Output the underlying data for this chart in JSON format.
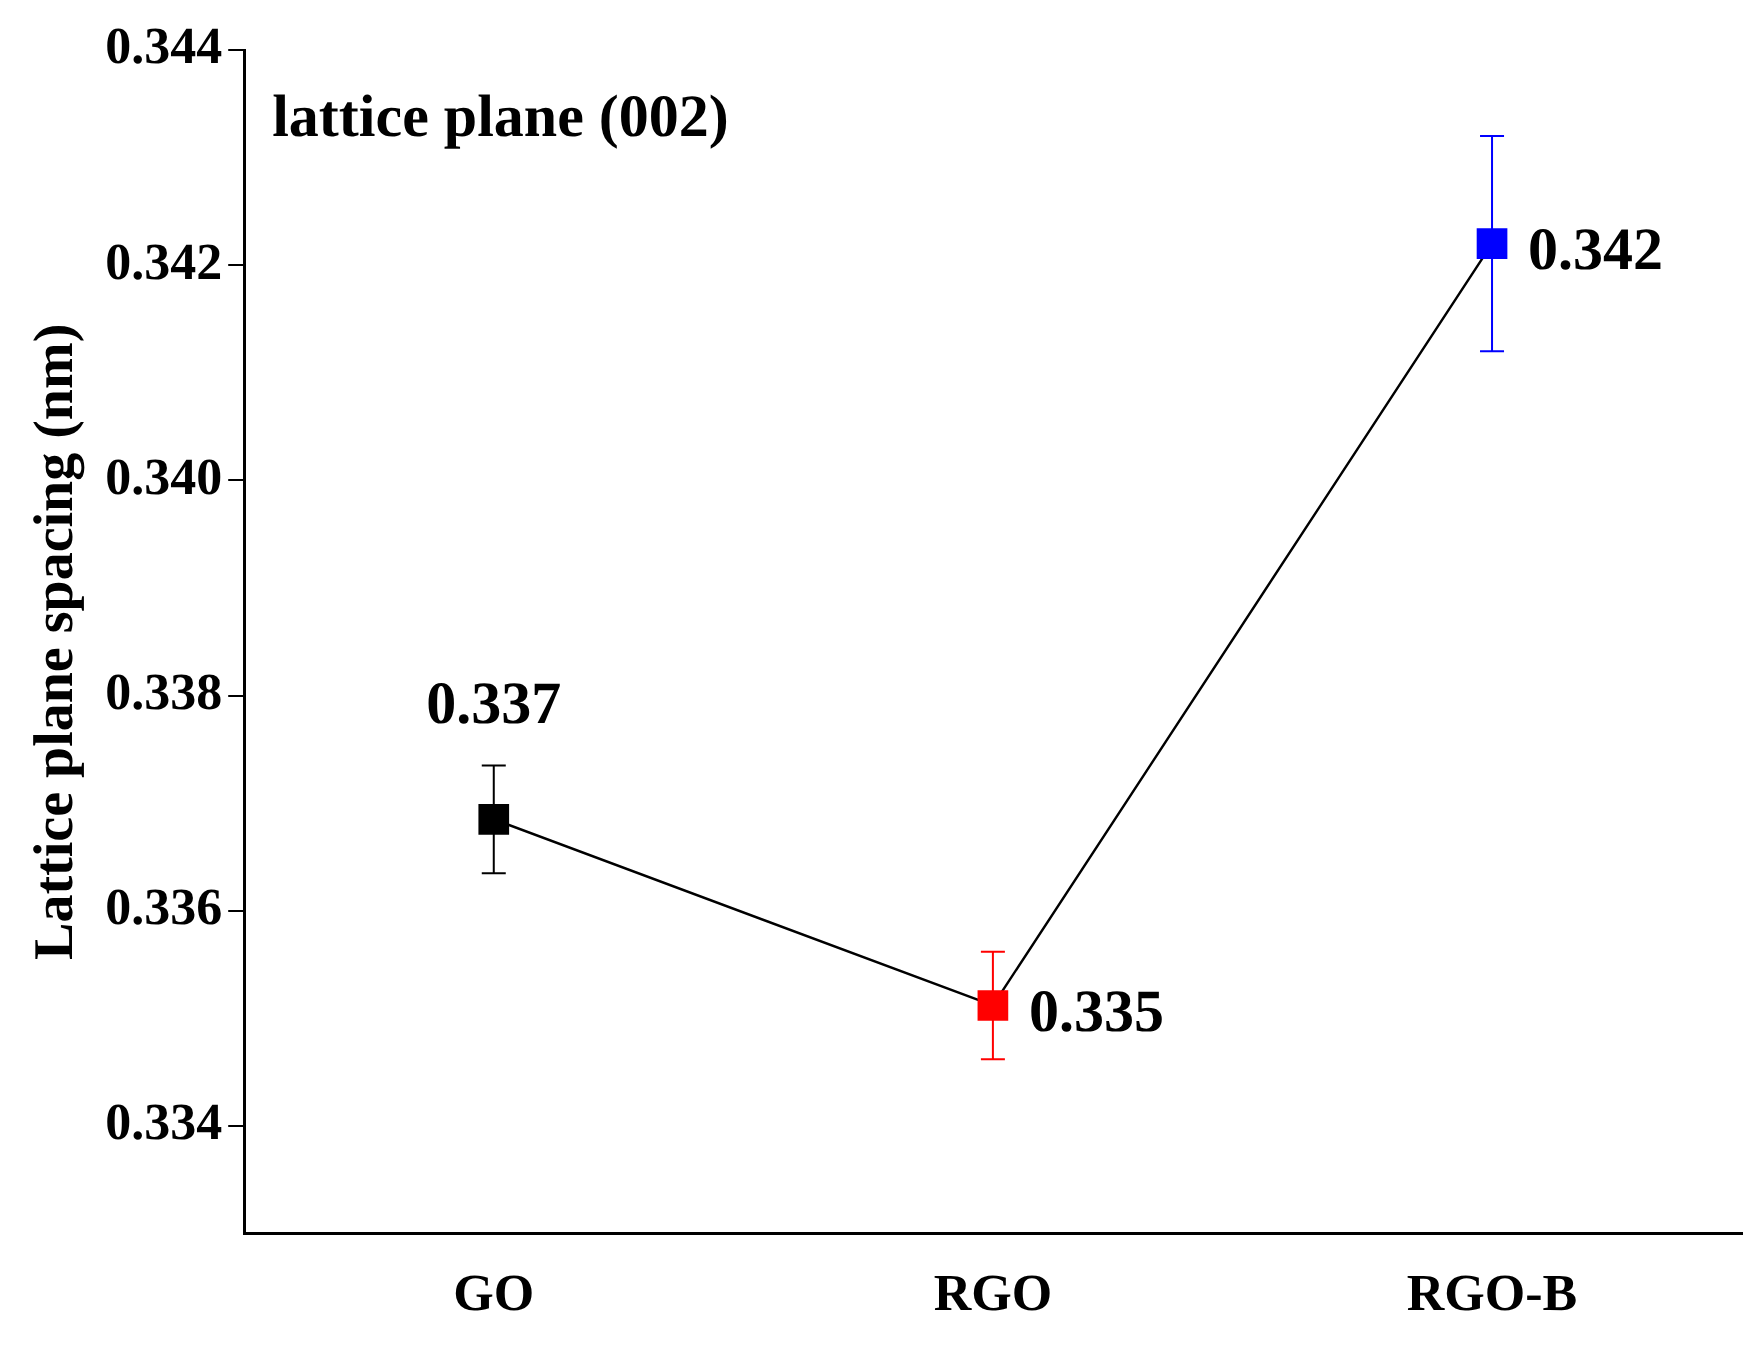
{
  "chart_data": {
    "type": "line",
    "title": "lattice plane (002)",
    "ylabel": "Lattice plane spacing (nm)",
    "categories": [
      "GO",
      "RGO",
      "RGO-B"
    ],
    "series": [
      {
        "color": "#000000",
        "colors": [
          "#000000",
          "#ff0000",
          "#0000ff"
        ],
        "values": [
          0.33685,
          0.33512,
          0.3422
        ],
        "errors": [
          0.0005,
          0.0005,
          0.001
        ],
        "value_labels": [
          "0.337",
          "0.335",
          "0.342"
        ]
      }
    ],
    "ylim": [
      0.333,
      0.344
    ],
    "yticks": [
      0.334,
      0.336,
      0.338,
      {
        "value": 0.34,
        "label": "0.340"
      },
      0.342,
      0.344
    ],
    "marker": "square",
    "line_style": "solid",
    "grid": false,
    "legend": false
  }
}
